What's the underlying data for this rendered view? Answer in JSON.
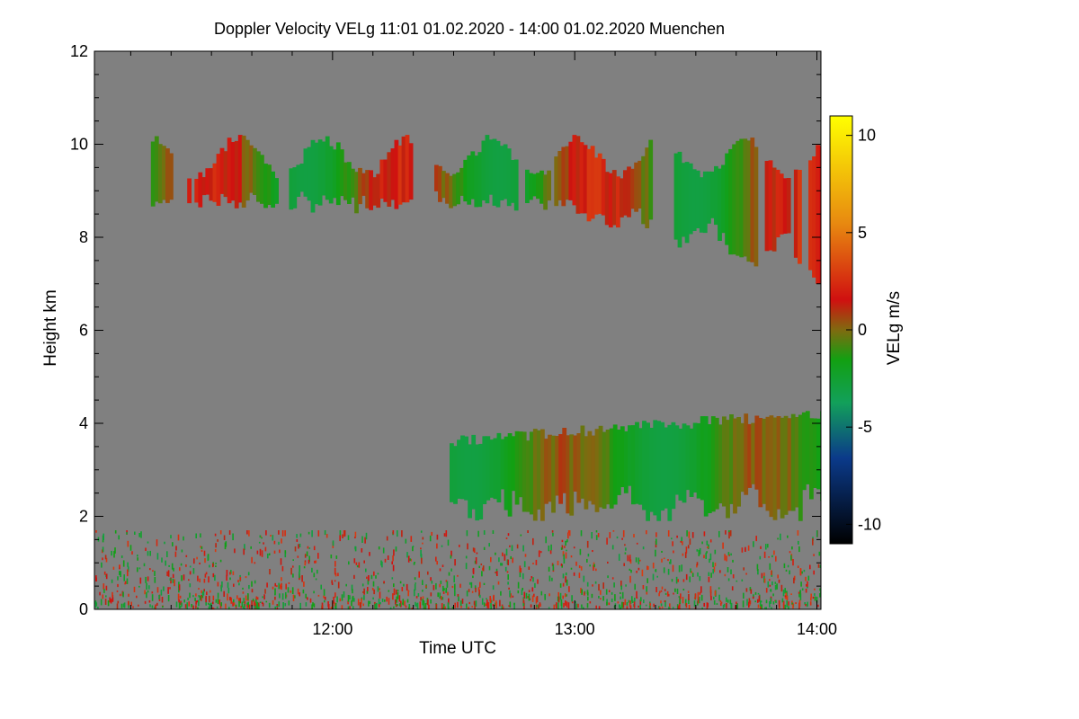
{
  "chart_data": {
    "type": "heatmap",
    "title": "Doppler Velocity VELg   11:01 01.02.2020 - 14:00 01.02.2020 Muenchen",
    "xlabel": "Time UTC",
    "ylabel": "Height km",
    "xlim": [
      "11:01",
      "14:01"
    ],
    "ylim": [
      0,
      12
    ],
    "x_ticks": [
      "12:00",
      "13:00",
      "14:00"
    ],
    "y_ticks": [
      0,
      2,
      4,
      6,
      8,
      10,
      12
    ],
    "colorbar": {
      "label": "VELg m/s",
      "range": [
        -11,
        11
      ],
      "ticks": [
        10,
        5,
        0,
        -5,
        -10
      ]
    },
    "background_color": "#808080",
    "features": [
      {
        "layer": "upper cloud",
        "time_start": "11:15",
        "time_end": "14:01",
        "height_base_km": 7.0,
        "height_top_km": 10.2,
        "velocity_range": [
          -3,
          3
        ]
      },
      {
        "layer": "mid cloud",
        "time_start": "12:29",
        "time_end": "14:01",
        "height_base_km": 1.9,
        "height_top_km": 4.4,
        "velocity_range": [
          -3,
          1
        ]
      },
      {
        "layer": "boundary layer clutter",
        "time_start": "11:01",
        "time_end": "14:01",
        "height_base_km": 0.0,
        "height_top_km": 1.7,
        "velocity_range": [
          -3,
          3
        ]
      }
    ]
  }
}
